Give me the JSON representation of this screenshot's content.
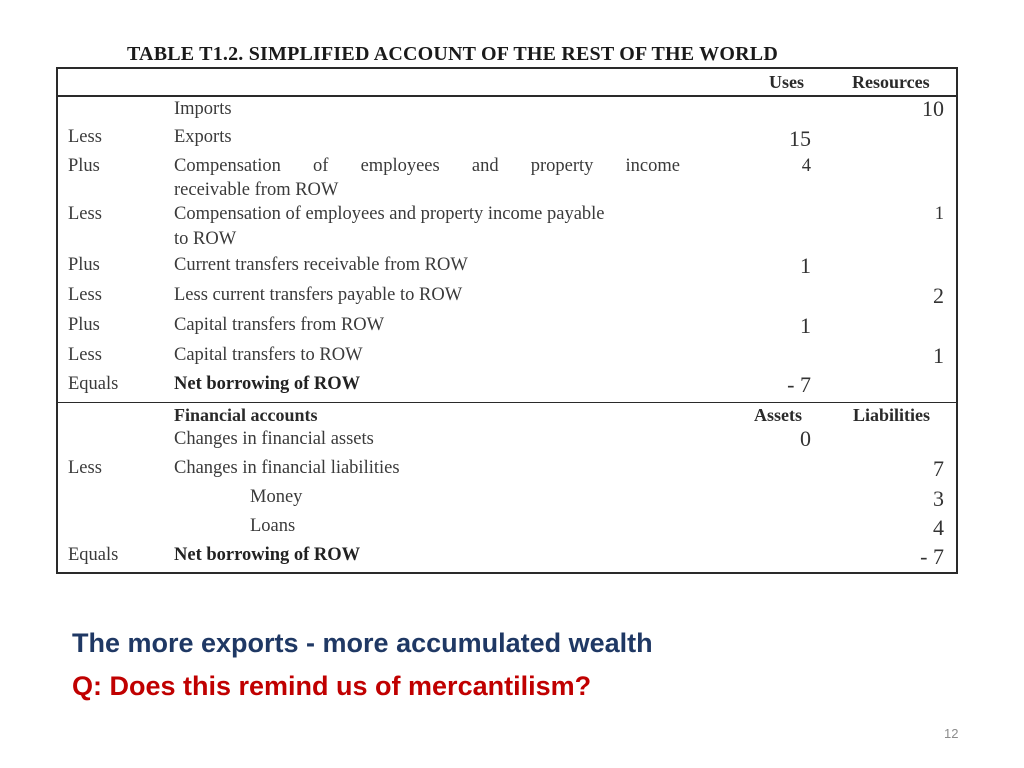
{
  "title": "TABLE T1.2.  SIMPLIFIED ACCOUNT OF THE REST OF THE WORLD",
  "header": {
    "uses": "Uses",
    "resources": "Resources"
  },
  "rows": [
    {
      "prefix": "",
      "label": "Imports",
      "uses": "",
      "resources": "10"
    },
    {
      "prefix": "Less",
      "label": "Exports",
      "uses": "15",
      "resources": ""
    },
    {
      "prefix": "Plus",
      "label_line1": "Compensation of employees and property income",
      "label_line2": "receivable from ROW",
      "uses": "4",
      "resources": ""
    },
    {
      "prefix": "Less",
      "label_line1": "Compensation of employees and property income payable",
      "label_line2": "to ROW",
      "uses": "",
      "resources": "1"
    },
    {
      "prefix": "Plus",
      "label": "Current transfers receivable from ROW",
      "uses": "1",
      "resources": ""
    },
    {
      "prefix": "Less",
      "label": "Less current transfers payable to ROW",
      "uses": "",
      "resources": "2"
    },
    {
      "prefix": "Plus",
      "label": "Capital transfers from ROW",
      "uses": "1",
      "resources": ""
    },
    {
      "prefix": "Less",
      "label": "Capital transfers to ROW",
      "uses": "",
      "resources": "1"
    },
    {
      "prefix": "Equals",
      "label": "Net borrowing of ROW",
      "uses": "- 7",
      "resources": ""
    }
  ],
  "financial": {
    "heading": "Financial accounts",
    "assets": "Assets",
    "liabilities": "Liabilities",
    "rows": [
      {
        "prefix": "",
        "label": "Changes in financial assets",
        "assets": "0",
        "liabilities": ""
      },
      {
        "prefix": "Less",
        "label": "Changes in financial liabilities",
        "assets": "",
        "liabilities": "7"
      },
      {
        "prefix": "",
        "label": "Money",
        "assets": "",
        "liabilities": "3"
      },
      {
        "prefix": "",
        "label": "Loans",
        "assets": "",
        "liabilities": "4"
      },
      {
        "prefix": "Equals",
        "label": "Net borrowing of ROW",
        "assets": "",
        "liabilities": "- 7"
      }
    ]
  },
  "caption_line1": "The more exports - more accumulated wealth",
  "caption_line2": "Q: Does this remind us of mercantilism?",
  "page_number": "12",
  "colors": {
    "caption_blue": "#1f3864",
    "caption_red": "#c00000"
  }
}
